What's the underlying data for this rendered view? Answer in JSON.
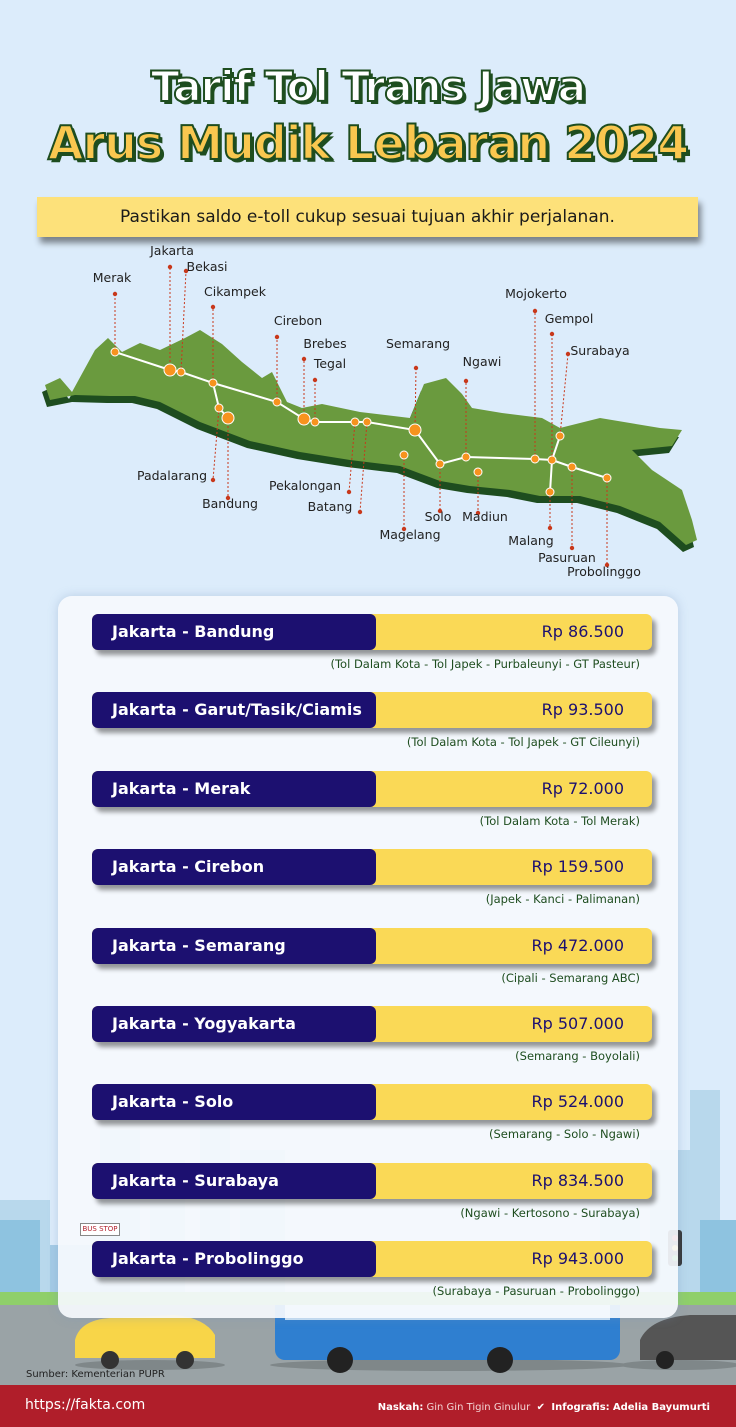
{
  "header": {
    "title_line1": "Tarif Tol Trans Jawa",
    "title_line2": "Arus Mudik Lebaran 2024",
    "notice": "Pastikan saldo e-toll cukup sesuai tujuan akhir perjalanan."
  },
  "map": {
    "cities": [
      "Merak",
      "Jakarta",
      "Bekasi",
      "Cikampek",
      "Padalarang",
      "Bandung",
      "Cirebon",
      "Brebes",
      "Tegal",
      "Pekalongan",
      "Batang",
      "Semarang",
      "Magelang",
      "Solo",
      "Ngawi",
      "Madiun",
      "Mojokerto",
      "Gempol",
      "Surabaya",
      "Malang",
      "Pasuruan",
      "Probolinggo"
    ],
    "colors": {
      "land": "#6a9a3e",
      "land_shadow": "#1e4d1f",
      "node": "#f7931e",
      "pin": "#c8381b",
      "road": "#ffffff"
    }
  },
  "tariffs": [
    {
      "route": "Jakarta - Bandung",
      "price": "Rp 86.500",
      "via": "(Tol Dalam Kota - Tol Japek - Purbaleunyi - GT Pasteur)"
    },
    {
      "route": "Jakarta - Garut/Tasik/Ciamis",
      "price": "Rp 93.500",
      "via": "(Tol Dalam Kota - Tol Japek - GT Cileunyi)"
    },
    {
      "route": "Jakarta - Merak",
      "price": "Rp 72.000",
      "via": "(Tol Dalam Kota - Tol Merak)"
    },
    {
      "route": "Jakarta - Cirebon",
      "price": "Rp 159.500",
      "via": "(Japek - Kanci - Palimanan)"
    },
    {
      "route": "Jakarta - Semarang",
      "price": "Rp 472.000",
      "via": "(Cipali - Semarang ABC)"
    },
    {
      "route": "Jakarta - Yogyakarta",
      "price": "Rp 507.000",
      "via": "(Semarang - Boyolali)"
    },
    {
      "route": "Jakarta - Solo",
      "price": "Rp 524.000",
      "via": "(Semarang - Solo - Ngawi)"
    },
    {
      "route": "Jakarta - Surabaya",
      "price": "Rp 834.500",
      "via": "(Ngawi - Kertosono - Surabaya)"
    },
    {
      "route": "Jakarta - Probolinggo",
      "price": "Rp 943.000",
      "via": "(Surabaya - Pasuruan - Probolinggo)"
    }
  ],
  "scene": {
    "bus_stop_sign": "BUS STOP"
  },
  "footer": {
    "source": "Sumber: Kementerian PUPR",
    "url": "https://fakta.com",
    "writer_label": "Naskah:",
    "writer": "Gin Gin Tigin Ginulur",
    "designer_label": "Infografis:",
    "designer": "Adelia Bayumurti"
  }
}
